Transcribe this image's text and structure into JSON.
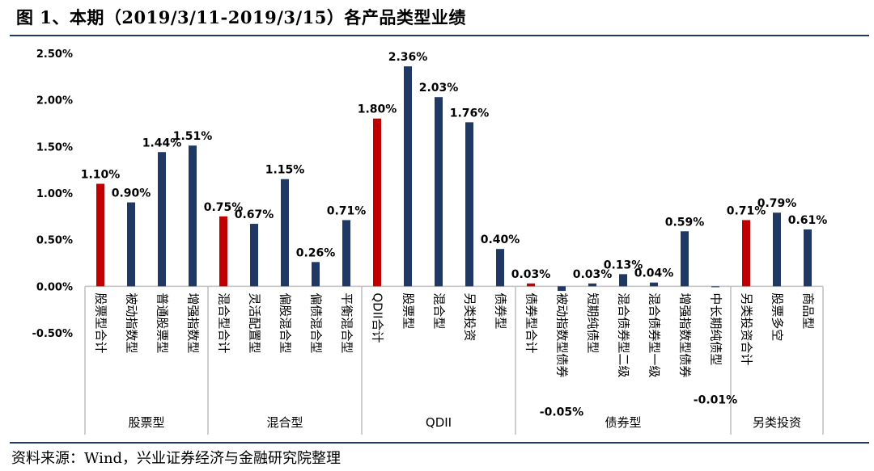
{
  "figure": {
    "title": "图 1、本期（2019/3/11-2019/3/15）各产品类型业绩",
    "source": "资料来源：Wind，兴业证券经济与金融研究院整理"
  },
  "colors": {
    "highlight": "#c00000",
    "normal": "#1f3864",
    "axis": "#bfbfbf",
    "rule": "#1f3864"
  },
  "chart_data": {
    "type": "bar",
    "title": "",
    "xlabel": "",
    "ylabel": "",
    "ylim": [
      -0.5,
      2.5
    ],
    "yticks": [
      "2.50%",
      "2.00%",
      "1.50%",
      "1.00%",
      "0.50%",
      "0.00%",
      "-0.50%"
    ],
    "ytick_values": [
      2.5,
      2.0,
      1.5,
      1.0,
      0.5,
      0.0,
      -0.5
    ],
    "grid": false,
    "legend": "none",
    "categories": [
      "股票型合计",
      "被动指数型",
      "普通股票型",
      "增强指数型",
      "混合型合计",
      "灵活配置型",
      "偏股混合型",
      "偏债混合型",
      "平衡混合型",
      "QDII合计",
      "股票型",
      "混合型",
      "另类投资",
      "债券型",
      "债券型合计",
      "被动指数型债券",
      "短期纯债型",
      "混合债券型二级",
      "混合债券型一级",
      "增强指数型债券",
      "中长期纯债型",
      "另类投资合计",
      "股票多空",
      "商品型"
    ],
    "values": [
      1.1,
      0.9,
      1.44,
      1.51,
      0.75,
      0.67,
      1.15,
      0.26,
      0.71,
      1.8,
      2.36,
      2.03,
      1.76,
      0.4,
      0.03,
      -0.05,
      0.03,
      0.13,
      0.04,
      0.59,
      -0.01,
      0.71,
      0.79,
      0.61
    ],
    "labels": [
      "1.10%",
      "0.90%",
      "1.44%",
      "1.51%",
      "0.75%",
      "0.67%",
      "1.15%",
      "0.26%",
      "0.71%",
      "1.80%",
      "2.36%",
      "2.03%",
      "1.76%",
      "0.40%",
      "0.03%",
      "-0.05%",
      "0.03%",
      "0.13%",
      "0.04%",
      "0.59%",
      "-0.01%",
      "0.71%",
      "0.79%",
      "0.61%"
    ],
    "highlight": [
      true,
      false,
      false,
      false,
      true,
      false,
      false,
      false,
      false,
      true,
      false,
      false,
      false,
      false,
      true,
      false,
      false,
      false,
      false,
      false,
      false,
      true,
      false,
      false
    ],
    "groups": [
      {
        "name": "股票型",
        "start": 0,
        "end": 3
      },
      {
        "name": "混合型",
        "start": 4,
        "end": 8
      },
      {
        "name": "QDII",
        "start": 9,
        "end": 13
      },
      {
        "name": "债券型",
        "start": 14,
        "end": 20
      },
      {
        "name": "另类投资",
        "start": 21,
        "end": 23
      }
    ]
  }
}
